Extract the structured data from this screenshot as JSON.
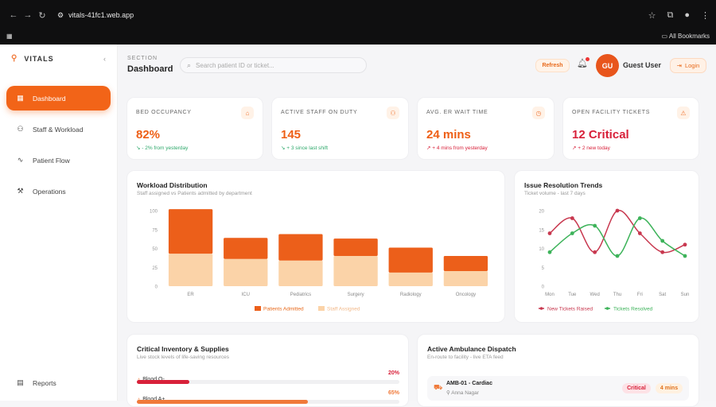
{
  "browser": {
    "url": "vitals-41fc1.web.app",
    "all_bookmarks": "All Bookmarks"
  },
  "sidebar": {
    "brand": "VITALS",
    "items": [
      {
        "label": "Dashboard",
        "icon": "grid-icon",
        "active": true
      },
      {
        "label": "Staff & Workload",
        "icon": "users-icon"
      },
      {
        "label": "Patient Flow",
        "icon": "activity-icon"
      },
      {
        "label": "Operations",
        "icon": "wrench-icon"
      }
    ],
    "footer_item": {
      "label": "Reports",
      "icon": "document-icon"
    }
  },
  "header": {
    "section_label": "SECTION",
    "title": "Dashboard",
    "search_placeholder": "Search patient ID or ticket...",
    "refresh_label": "Refresh",
    "avatar_initials": "GU",
    "user_name": "Guest User",
    "login_label": "Login"
  },
  "kpis": [
    {
      "label": "BED OCCUPANCY",
      "value": "82%",
      "sub": "↘ - 2% from yesterday",
      "trend": "good",
      "icon": "bed-icon"
    },
    {
      "label": "ACTIVE STAFF ON DUTY",
      "value": "145",
      "sub": "↘ + 3 since last shift",
      "trend": "good",
      "icon": "user-plus-icon"
    },
    {
      "label": "AVG. ER WAIT TIME",
      "value": "24 mins",
      "sub": "↗ + 4 mins from yesterday",
      "trend": "bad",
      "icon": "clock-icon"
    },
    {
      "label": "OPEN FACILITY TICKETS",
      "value": "12 Critical",
      "sub": "↗ + 2 new today",
      "trend": "bad",
      "icon": "alert-icon",
      "critical": true
    }
  ],
  "workload_chart": {
    "title": "Workload Distribution",
    "subtitle": "Staff assigned vs Patients admitted by department"
  },
  "issue_chart": {
    "title": "Issue Resolution Trends",
    "subtitle": "Ticket volume - last 7 days"
  },
  "chart_data": [
    {
      "type": "bar",
      "stacked": true,
      "title": "Workload Distribution",
      "categories": [
        "ER",
        "ICU",
        "Pediatrics",
        "Surgery",
        "Radiology",
        "Oncology"
      ],
      "series": [
        {
          "name": "Staff Assigned",
          "values": [
            43,
            36,
            34,
            40,
            18,
            20
          ],
          "color": "#fbd3a8"
        },
        {
          "name": "Patients Admitted",
          "values": [
            59,
            28,
            35,
            23,
            33,
            20
          ],
          "color": "#ec5f1a"
        }
      ],
      "ylim": [
        0,
        100
      ],
      "yticks": [
        0,
        25,
        50,
        75,
        100
      ],
      "legend": "bottom"
    },
    {
      "type": "line",
      "title": "Issue Resolution Trends",
      "categories": [
        "Mon",
        "Tue",
        "Wed",
        "Thu",
        "Fri",
        "Sat",
        "Sun"
      ],
      "series": [
        {
          "name": "New Tickets Raised",
          "values": [
            14,
            18,
            9,
            20,
            14,
            9,
            11
          ],
          "color": "#c8384f"
        },
        {
          "name": "Tickets Resolved",
          "values": [
            9,
            14,
            16,
            8,
            18,
            12,
            8
          ],
          "color": "#3db35a"
        }
      ],
      "ylim": [
        0,
        20
      ],
      "yticks": [
        0,
        5,
        10,
        15,
        20
      ],
      "legend": "bottom"
    }
  ],
  "inventory": {
    "title": "Critical Inventory & Supplies",
    "subtitle": "Live stock levels of life-saving resources",
    "items": [
      {
        "name": "Blood O-",
        "pct_label": "20%",
        "level": 0.2,
        "color": "#d8213a"
      },
      {
        "name": "Blood A+",
        "pct_label": "65%",
        "level": 0.65,
        "color": "#f07a3a"
      }
    ]
  },
  "ambulance": {
    "title": "Active Ambulance Dispatch",
    "subtitle": "En-route to facility - live ETA feed",
    "items": [
      {
        "name": "AMB-01 - Cardiac",
        "driver": "Anna Nagar",
        "priority": "Critical",
        "eta": "4 mins"
      }
    ]
  }
}
